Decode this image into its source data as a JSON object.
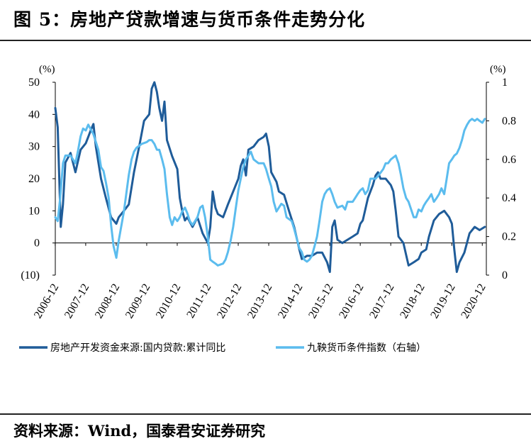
{
  "header": {
    "title": "图 5：房地产贷款增速与货币条件走势分化"
  },
  "footer": {
    "source": "资料来源：Wind，国泰君安证券研究"
  },
  "colors": {
    "dark_series": "#1f5c99",
    "light_series": "#5bbcee",
    "negative_tick": "#cc0000"
  },
  "chart_data": {
    "type": "line",
    "title": "房地产贷款增速与货币条件走势分化",
    "left_axis": {
      "unit": "(%)",
      "ylim": [
        -10,
        50
      ],
      "ticks": [
        "(10)",
        "0",
        "10",
        "20",
        "30",
        "40",
        "50"
      ]
    },
    "right_axis": {
      "unit": "(%)",
      "ylim": [
        0,
        1
      ],
      "ticks": [
        "0",
        "0.2",
        "0.4",
        "0.6",
        "0.8",
        "1"
      ]
    },
    "x_ticks": [
      "2006-12",
      "2007-12",
      "2008-12",
      "2009-12",
      "2010-12",
      "2011-12",
      "2012-12",
      "2013-12",
      "2014-12",
      "2015-12",
      "2016-12",
      "2017-12",
      "2018-12",
      "2019-12",
      "2020-12"
    ],
    "xlim": [
      2006.92,
      2021.05
    ],
    "legend_position": "bottom",
    "series": [
      {
        "name": "房地产开发资金来源:国内贷款:累计同比",
        "axis": "left",
        "color": "#1f5c99",
        "points": [
          [
            2006.92,
            42
          ],
          [
            2007.0,
            36
          ],
          [
            2007.1,
            5
          ],
          [
            2007.17,
            12
          ],
          [
            2007.25,
            25
          ],
          [
            2007.42,
            28
          ],
          [
            2007.58,
            22
          ],
          [
            2007.75,
            29
          ],
          [
            2007.92,
            31
          ],
          [
            2008.0,
            33
          ],
          [
            2008.08,
            35
          ],
          [
            2008.17,
            37
          ],
          [
            2008.25,
            30
          ],
          [
            2008.42,
            20
          ],
          [
            2008.58,
            14
          ],
          [
            2008.75,
            8
          ],
          [
            2008.92,
            6
          ],
          [
            2009.0,
            8
          ],
          [
            2009.17,
            10
          ],
          [
            2009.33,
            12
          ],
          [
            2009.5,
            22
          ],
          [
            2009.67,
            30
          ],
          [
            2009.83,
            38
          ],
          [
            2010.0,
            40
          ],
          [
            2010.08,
            48
          ],
          [
            2010.17,
            50
          ],
          [
            2010.25,
            47
          ],
          [
            2010.33,
            42
          ],
          [
            2010.42,
            38
          ],
          [
            2010.5,
            44
          ],
          [
            2010.58,
            32
          ],
          [
            2010.75,
            27
          ],
          [
            2010.92,
            23
          ],
          [
            2011.0,
            14
          ],
          [
            2011.08,
            10
          ],
          [
            2011.17,
            7
          ],
          [
            2011.25,
            8
          ],
          [
            2011.42,
            5
          ],
          [
            2011.58,
            8
          ],
          [
            2011.75,
            3
          ],
          [
            2011.92,
            0
          ],
          [
            2012.0,
            5
          ],
          [
            2012.08,
            16
          ],
          [
            2012.17,
            11
          ],
          [
            2012.25,
            9
          ],
          [
            2012.42,
            8
          ],
          [
            2012.58,
            12
          ],
          [
            2012.75,
            16
          ],
          [
            2012.92,
            20
          ],
          [
            2013.0,
            24
          ],
          [
            2013.08,
            26
          ],
          [
            2013.17,
            21
          ],
          [
            2013.25,
            29
          ],
          [
            2013.42,
            30
          ],
          [
            2013.58,
            32
          ],
          [
            2013.75,
            33
          ],
          [
            2013.83,
            34
          ],
          [
            2013.92,
            30
          ],
          [
            2014.0,
            22
          ],
          [
            2014.17,
            19
          ],
          [
            2014.25,
            16
          ],
          [
            2014.42,
            15
          ],
          [
            2014.58,
            10
          ],
          [
            2014.75,
            5
          ],
          [
            2014.92,
            -2
          ],
          [
            2015.0,
            -5
          ],
          [
            2015.17,
            -4
          ],
          [
            2015.33,
            -4
          ],
          [
            2015.5,
            -3
          ],
          [
            2015.67,
            -3
          ],
          [
            2015.83,
            -6
          ],
          [
            2015.92,
            -9
          ],
          [
            2016.0,
            5
          ],
          [
            2016.08,
            7
          ],
          [
            2016.17,
            1
          ],
          [
            2016.33,
            0
          ],
          [
            2016.5,
            1
          ],
          [
            2016.67,
            2
          ],
          [
            2016.83,
            3
          ],
          [
            2016.92,
            6
          ],
          [
            2017.0,
            7
          ],
          [
            2017.17,
            14
          ],
          [
            2017.33,
            18
          ],
          [
            2017.42,
            21
          ],
          [
            2017.5,
            22
          ],
          [
            2017.58,
            20
          ],
          [
            2017.75,
            20
          ],
          [
            2017.92,
            18
          ],
          [
            2018.0,
            16
          ],
          [
            2018.08,
            10
          ],
          [
            2018.17,
            2
          ],
          [
            2018.33,
            0
          ],
          [
            2018.5,
            -7
          ],
          [
            2018.67,
            -6
          ],
          [
            2018.83,
            -5
          ],
          [
            2018.92,
            -3
          ],
          [
            2019.08,
            -2
          ],
          [
            2019.17,
            2
          ],
          [
            2019.33,
            7
          ],
          [
            2019.5,
            9
          ],
          [
            2019.67,
            10
          ],
          [
            2019.83,
            8
          ],
          [
            2019.92,
            6
          ],
          [
            2020.0,
            -2
          ],
          [
            2020.08,
            -9
          ],
          [
            2020.17,
            -6
          ],
          [
            2020.33,
            -3
          ],
          [
            2020.5,
            3
          ],
          [
            2020.67,
            5
          ],
          [
            2020.83,
            4
          ],
          [
            2021.0,
            5
          ]
        ]
      },
      {
        "name": "九鞅货币条件指数（右轴）",
        "axis": "right",
        "color": "#5bbcee",
        "points": [
          [
            2006.92,
            0.3
          ],
          [
            2007.0,
            0.28
          ],
          [
            2007.08,
            0.4
          ],
          [
            2007.17,
            0.58
          ],
          [
            2007.25,
            0.62
          ],
          [
            2007.42,
            0.62
          ],
          [
            2007.58,
            0.58
          ],
          [
            2007.67,
            0.65
          ],
          [
            2007.75,
            0.72
          ],
          [
            2007.83,
            0.76
          ],
          [
            2007.92,
            0.75
          ],
          [
            2008.0,
            0.78
          ],
          [
            2008.17,
            0.73
          ],
          [
            2008.33,
            0.65
          ],
          [
            2008.42,
            0.56
          ],
          [
            2008.5,
            0.54
          ],
          [
            2008.58,
            0.48
          ],
          [
            2008.67,
            0.4
          ],
          [
            2008.75,
            0.26
          ],
          [
            2008.83,
            0.15
          ],
          [
            2008.92,
            0.09
          ],
          [
            2009.0,
            0.18
          ],
          [
            2009.17,
            0.33
          ],
          [
            2009.33,
            0.52
          ],
          [
            2009.42,
            0.6
          ],
          [
            2009.5,
            0.64
          ],
          [
            2009.58,
            0.66
          ],
          [
            2009.75,
            0.68
          ],
          [
            2009.92,
            0.69
          ],
          [
            2010.0,
            0.7
          ],
          [
            2010.08,
            0.7
          ],
          [
            2010.17,
            0.68
          ],
          [
            2010.25,
            0.65
          ],
          [
            2010.33,
            0.65
          ],
          [
            2010.42,
            0.6
          ],
          [
            2010.5,
            0.55
          ],
          [
            2010.58,
            0.42
          ],
          [
            2010.67,
            0.3
          ],
          [
            2010.75,
            0.26
          ],
          [
            2010.83,
            0.3
          ],
          [
            2010.92,
            0.28
          ],
          [
            2011.0,
            0.3
          ],
          [
            2011.08,
            0.33
          ],
          [
            2011.17,
            0.35
          ],
          [
            2011.25,
            0.32
          ],
          [
            2011.33,
            0.28
          ],
          [
            2011.42,
            0.26
          ],
          [
            2011.58,
            0.3
          ],
          [
            2011.67,
            0.35
          ],
          [
            2011.75,
            0.36
          ],
          [
            2011.83,
            0.3
          ],
          [
            2011.92,
            0.2
          ],
          [
            2012.0,
            0.08
          ],
          [
            2012.08,
            0.07
          ],
          [
            2012.17,
            0.06
          ],
          [
            2012.25,
            0.05
          ],
          [
            2012.42,
            0.06
          ],
          [
            2012.5,
            0.08
          ],
          [
            2012.58,
            0.12
          ],
          [
            2012.67,
            0.18
          ],
          [
            2012.75,
            0.25
          ],
          [
            2012.83,
            0.34
          ],
          [
            2012.92,
            0.44
          ],
          [
            2013.0,
            0.5
          ],
          [
            2013.08,
            0.56
          ],
          [
            2013.17,
            0.6
          ],
          [
            2013.25,
            0.62
          ],
          [
            2013.33,
            0.64
          ],
          [
            2013.42,
            0.6
          ],
          [
            2013.58,
            0.58
          ],
          [
            2013.75,
            0.58
          ],
          [
            2013.83,
            0.55
          ],
          [
            2013.92,
            0.5
          ],
          [
            2014.0,
            0.46
          ],
          [
            2014.08,
            0.38
          ],
          [
            2014.17,
            0.33
          ],
          [
            2014.33,
            0.37
          ],
          [
            2014.42,
            0.36
          ],
          [
            2014.5,
            0.3
          ],
          [
            2014.67,
            0.28
          ],
          [
            2014.75,
            0.24
          ],
          [
            2014.92,
            0.14
          ],
          [
            2015.0,
            0.12
          ],
          [
            2015.08,
            0.08
          ],
          [
            2015.17,
            0.07
          ],
          [
            2015.25,
            0.08
          ],
          [
            2015.33,
            0.1
          ],
          [
            2015.42,
            0.15
          ],
          [
            2015.5,
            0.2
          ],
          [
            2015.58,
            0.28
          ],
          [
            2015.67,
            0.38
          ],
          [
            2015.75,
            0.42
          ],
          [
            2015.83,
            0.44
          ],
          [
            2015.92,
            0.45
          ],
          [
            2016.0,
            0.42
          ],
          [
            2016.08,
            0.38
          ],
          [
            2016.17,
            0.35
          ],
          [
            2016.33,
            0.36
          ],
          [
            2016.42,
            0.34
          ],
          [
            2016.5,
            0.38
          ],
          [
            2016.67,
            0.38
          ],
          [
            2016.75,
            0.4
          ],
          [
            2016.83,
            0.42
          ],
          [
            2016.92,
            0.44
          ],
          [
            2017.0,
            0.45
          ],
          [
            2017.08,
            0.42
          ],
          [
            2017.17,
            0.44
          ],
          [
            2017.25,
            0.5
          ],
          [
            2017.42,
            0.5
          ],
          [
            2017.58,
            0.53
          ],
          [
            2017.67,
            0.55
          ],
          [
            2017.75,
            0.58
          ],
          [
            2017.83,
            0.58
          ],
          [
            2017.92,
            0.6
          ],
          [
            2018.0,
            0.61
          ],
          [
            2018.08,
            0.62
          ],
          [
            2018.17,
            0.58
          ],
          [
            2018.25,
            0.52
          ],
          [
            2018.33,
            0.45
          ],
          [
            2018.42,
            0.4
          ],
          [
            2018.5,
            0.38
          ],
          [
            2018.67,
            0.3
          ],
          [
            2018.75,
            0.3
          ],
          [
            2018.83,
            0.34
          ],
          [
            2018.92,
            0.33
          ],
          [
            2019.0,
            0.36
          ],
          [
            2019.08,
            0.38
          ],
          [
            2019.17,
            0.4
          ],
          [
            2019.25,
            0.42
          ],
          [
            2019.33,
            0.38
          ],
          [
            2019.42,
            0.4
          ],
          [
            2019.5,
            0.42
          ],
          [
            2019.58,
            0.45
          ],
          [
            2019.67,
            0.42
          ],
          [
            2019.75,
            0.5
          ],
          [
            2019.83,
            0.58
          ],
          [
            2019.92,
            0.6
          ],
          [
            2020.0,
            0.62
          ],
          [
            2020.08,
            0.63
          ],
          [
            2020.17,
            0.66
          ],
          [
            2020.25,
            0.7
          ],
          [
            2020.33,
            0.75
          ],
          [
            2020.42,
            0.78
          ],
          [
            2020.5,
            0.8
          ],
          [
            2020.58,
            0.81
          ],
          [
            2020.67,
            0.8
          ],
          [
            2020.75,
            0.81
          ],
          [
            2020.83,
            0.8
          ],
          [
            2020.92,
            0.79
          ],
          [
            2021.0,
            0.81
          ]
        ]
      }
    ]
  }
}
